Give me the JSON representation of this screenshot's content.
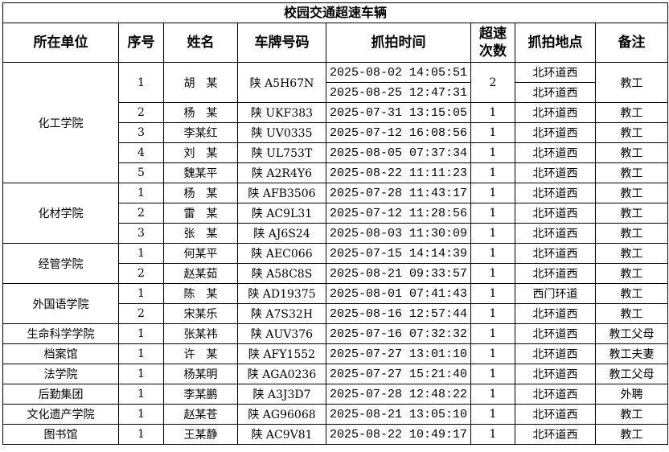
{
  "title": "校园交通超速车辆",
  "headers": [
    "所在单位",
    "序号",
    "姓名",
    "车牌号码",
    "抓拍时间",
    "超速\n次数",
    "抓拍地点",
    "备注"
  ],
  "groups": [
    {
      "unit": "化工学院",
      "people": [
        {
          "no": "1",
          "name": "胡　某",
          "plate": "陕 A5H67N",
          "count": "2",
          "note": "教工",
          "captures": [
            {
              "time": "2025-08-02 14:05:51",
              "place": "北环道西"
            },
            {
              "time": "2025-08-25 12:47:31",
              "place": "北环道西"
            }
          ]
        },
        {
          "no": "2",
          "name": "杨　某",
          "plate": "陕 UKF383",
          "count": "1",
          "note": "教工",
          "captures": [
            {
              "time": "2025-07-31 13:15:05",
              "place": "北环道西"
            }
          ]
        },
        {
          "no": "3",
          "name": "李某红",
          "plate": "陕 UV0335",
          "count": "1",
          "note": "教工",
          "captures": [
            {
              "time": "2025-07-12 16:08:56",
              "place": "北环道西"
            }
          ]
        },
        {
          "no": "4",
          "name": "刘　某",
          "plate": "陕 UL753T",
          "count": "1",
          "note": "教工",
          "captures": [
            {
              "time": "2025-08-05 07:37:34",
              "place": "北环道西"
            }
          ]
        },
        {
          "no": "5",
          "name": "魏某平",
          "plate": "陕 A2R4Y6",
          "count": "1",
          "note": "教工",
          "captures": [
            {
              "time": "2025-08-22 11:11:23",
              "place": "北环道西"
            }
          ]
        }
      ]
    },
    {
      "unit": "化材学院",
      "people": [
        {
          "no": "1",
          "name": "杨　某",
          "plate": "陕 AFB3506",
          "count": "1",
          "note": "教工",
          "captures": [
            {
              "time": "2025-07-28 11:43:17",
              "place": "北环道西"
            }
          ]
        },
        {
          "no": "2",
          "name": "雷　某",
          "plate": "陕 AC9L31",
          "count": "1",
          "note": "教工",
          "captures": [
            {
              "time": "2025-07-12 11:28:56",
              "place": "北环道西"
            }
          ]
        },
        {
          "no": "3",
          "name": "张　某",
          "plate": "陕 AJ6S24",
          "count": "1",
          "note": "教工",
          "captures": [
            {
              "time": "2025-08-03 11:30:09",
              "place": "北环道西"
            }
          ]
        }
      ]
    },
    {
      "unit": "经管学院",
      "people": [
        {
          "no": "1",
          "name": "何某平",
          "plate": "陕 AEC066",
          "count": "1",
          "note": "教工",
          "captures": [
            {
              "time": "2025-07-15 14:14:39",
              "place": "北环道西"
            }
          ]
        },
        {
          "no": "2",
          "name": "赵某茹",
          "plate": "陕 A58C8S",
          "count": "1",
          "note": "教工",
          "captures": [
            {
              "time": "2025-08-21 09:33:57",
              "place": "北环道西"
            }
          ]
        }
      ]
    },
    {
      "unit": "外国语学院",
      "people": [
        {
          "no": "1",
          "name": "陈　某",
          "plate": "陕 AD19375",
          "count": "1",
          "note": "教工",
          "captures": [
            {
              "time": "2025-08-01 07:41:43",
              "place": "西门环道"
            }
          ]
        },
        {
          "no": "2",
          "name": "宋某乐",
          "plate": "陕 A7S32H",
          "count": "1",
          "note": "教工",
          "captures": [
            {
              "time": "2025-08-16 12:57:44",
              "place": "北环道西"
            }
          ]
        }
      ]
    },
    {
      "unit": "生命科学学院",
      "people": [
        {
          "no": "1",
          "name": "张某祎",
          "plate": "陕 AUV376",
          "count": "1",
          "note": "教工父母",
          "captures": [
            {
              "time": "2025-07-16 07:32:32",
              "place": "北环道西"
            }
          ]
        }
      ]
    },
    {
      "unit": "档案馆",
      "people": [
        {
          "no": "1",
          "name": "许　某",
          "plate": "陕 AFY1552",
          "count": "1",
          "note": "教工夫妻",
          "captures": [
            {
              "time": "2025-07-27 13:01:10",
              "place": "北环道西"
            }
          ]
        }
      ]
    },
    {
      "unit": "法学院",
      "people": [
        {
          "no": "1",
          "name": "杨某明",
          "plate": "陕 AGA0236",
          "count": "1",
          "note": "教工父母",
          "captures": [
            {
              "time": "2025-07-27 15:21:40",
              "place": "北环道西"
            }
          ]
        }
      ]
    },
    {
      "unit": "后勤集团",
      "people": [
        {
          "no": "1",
          "name": "李某鹏",
          "plate": "陕 A3J3D7",
          "count": "1",
          "note": "外聘",
          "captures": [
            {
              "time": "2025-07-28 12:48:22",
              "place": "北环道西"
            }
          ]
        }
      ]
    },
    {
      "unit": "文化遗产学院",
      "people": [
        {
          "no": "1",
          "name": "赵某苍",
          "plate": "陕 AG96068",
          "count": "1",
          "note": "教工",
          "captures": [
            {
              "time": "2025-08-21 13:05:10",
              "place": "北环道西"
            }
          ]
        }
      ]
    },
    {
      "unit": "图书馆",
      "people": [
        {
          "no": "1",
          "name": "王某静",
          "plate": "陕 AC9V81",
          "count": "1",
          "note": "教工",
          "captures": [
            {
              "time": "2025-08-22 10:49:17",
              "place": "北环道西"
            }
          ]
        }
      ]
    }
  ]
}
